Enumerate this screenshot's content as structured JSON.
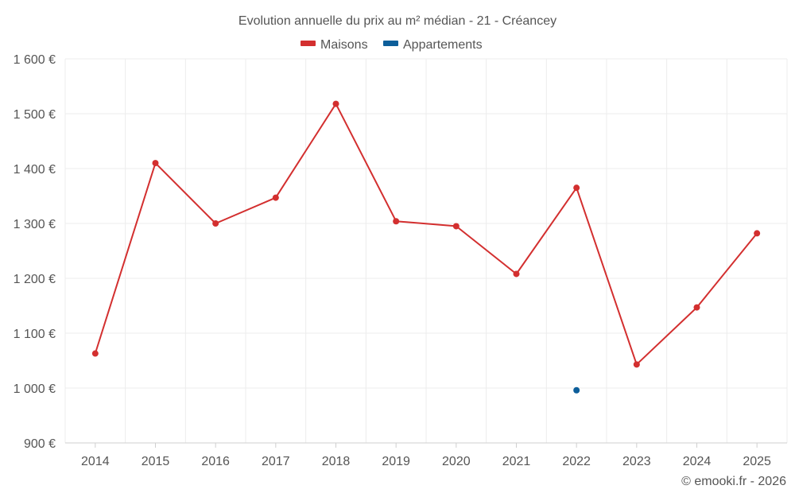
{
  "chart_data": {
    "type": "line",
    "title": "Evolution annuelle du prix au m² médian - 21 - Créancey",
    "categories": [
      "2014",
      "2015",
      "2016",
      "2017",
      "2018",
      "2019",
      "2020",
      "2021",
      "2022",
      "2023",
      "2024",
      "2025"
    ],
    "series": [
      {
        "name": "Maisons",
        "color": "#d32f2f",
        "values": [
          1063,
          1410,
          1300,
          1347,
          1518,
          1304,
          1295,
          1208,
          1365,
          1043,
          1147,
          1282
        ]
      },
      {
        "name": "Appartements",
        "color": "#0d5e9a",
        "values": [
          null,
          null,
          null,
          null,
          null,
          null,
          null,
          null,
          996,
          null,
          null,
          null
        ]
      }
    ],
    "yticks": [
      900,
      1000,
      1100,
      1200,
      1300,
      1400,
      1500,
      1600
    ],
    "ytick_labels": [
      "900 €",
      "1 000 €",
      "1 100 €",
      "1 200 €",
      "1 300 €",
      "1 400 €",
      "1 500 €",
      "1 600 €"
    ],
    "ylim": [
      900,
      1600
    ],
    "xlabel": "",
    "ylabel": "",
    "legend_position": "top-center",
    "grid": true
  },
  "credit": "© emooki.fr - 2026"
}
